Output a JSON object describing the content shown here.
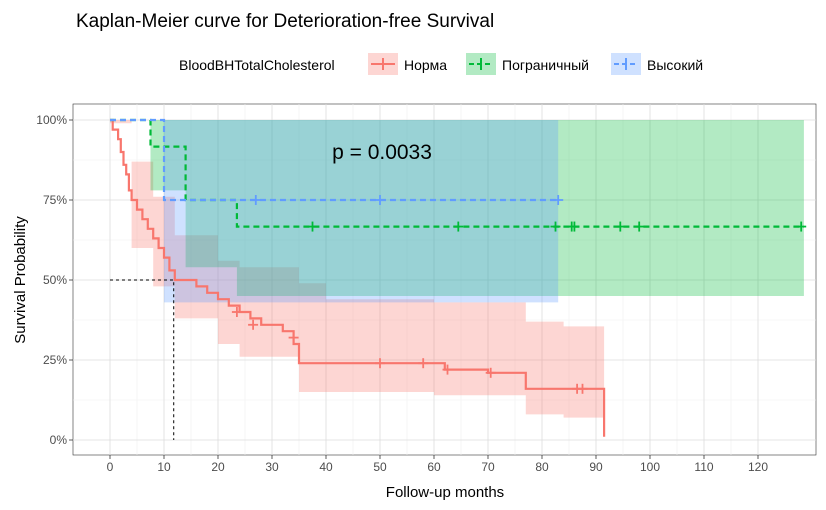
{
  "chart_data": {
    "type": "line",
    "subtype": "kaplan-meier",
    "title": "Kaplan-Meier curve for Deterioration-free Survival",
    "xlabel": "Follow-up months",
    "ylabel": "Survival Probability",
    "xlim": [
      -5,
      130
    ],
    "ylim": [
      0,
      1
    ],
    "x_ticks": [
      0,
      10,
      20,
      30,
      40,
      50,
      60,
      70,
      80,
      90,
      100,
      110,
      120
    ],
    "y_ticks": [
      {
        "value": 0,
        "label": "0%"
      },
      {
        "value": 0.25,
        "label": "25%"
      },
      {
        "value": 0.5,
        "label": "50%"
      },
      {
        "value": 0.75,
        "label": "75%"
      },
      {
        "value": 1,
        "label": "100%"
      }
    ],
    "grid": true,
    "legend": {
      "title": "BloodBHTotalCholesterol",
      "position": "top"
    },
    "annotation": "p = 0.0033",
    "annotation_pos": {
      "x": 50,
      "y": 0.9
    },
    "median_line": {
      "x": 11.8,
      "y": 0.5
    },
    "series": [
      {
        "name": "Норма",
        "color": "#F8766D",
        "fill": "#F8766D",
        "line_style": "solid",
        "steps": [
          [
            0,
            1.0
          ],
          [
            0.5,
            0.97
          ],
          [
            1.5,
            0.94
          ],
          [
            2,
            0.9
          ],
          [
            2.5,
            0.86
          ],
          [
            3,
            0.83
          ],
          [
            3.5,
            0.78
          ],
          [
            4,
            0.75
          ],
          [
            5,
            0.72
          ],
          [
            6,
            0.69
          ],
          [
            7,
            0.66
          ],
          [
            8,
            0.63
          ],
          [
            9,
            0.6
          ],
          [
            10,
            0.57
          ],
          [
            11,
            0.53
          ],
          [
            12,
            0.5
          ],
          [
            14,
            0.5
          ],
          [
            16,
            0.48
          ],
          [
            18,
            0.46
          ],
          [
            20,
            0.44
          ],
          [
            22,
            0.42
          ],
          [
            24,
            0.4
          ],
          [
            26,
            0.38
          ],
          [
            28,
            0.36
          ],
          [
            32,
            0.34
          ],
          [
            34,
            0.3
          ],
          [
            35,
            0.24
          ],
          [
            62,
            0.22
          ],
          [
            70,
            0.21
          ],
          [
            77,
            0.16
          ],
          [
            91,
            0.16
          ],
          [
            91.5,
            0.01
          ]
        ],
        "end_x": 91.5,
        "ci_upper": [
          [
            0,
            1.0
          ],
          [
            4,
            0.87
          ],
          [
            8,
            0.76
          ],
          [
            12,
            0.64
          ],
          [
            20,
            0.56
          ],
          [
            24,
            0.54
          ],
          [
            35,
            0.49
          ],
          [
            40,
            0.44
          ],
          [
            60,
            0.43
          ],
          [
            77,
            0.37
          ],
          [
            84,
            0.355
          ],
          [
            91.5,
            0.355
          ]
        ],
        "ci_lower": [
          [
            0,
            0.99
          ],
          [
            4,
            0.6
          ],
          [
            8,
            0.48
          ],
          [
            12,
            0.38
          ],
          [
            20,
            0.3
          ],
          [
            24,
            0.26
          ],
          [
            35,
            0.15
          ],
          [
            60,
            0.14
          ],
          [
            77,
            0.08
          ],
          [
            84,
            0.07
          ],
          [
            91.5,
            0.07
          ]
        ],
        "censor": [
          [
            23.5,
            0.4
          ],
          [
            26.5,
            0.36
          ],
          [
            34,
            0.32
          ],
          [
            50,
            0.24
          ],
          [
            58,
            0.24
          ],
          [
            62.5,
            0.22
          ],
          [
            70.5,
            0.21
          ],
          [
            86.5,
            0.16
          ],
          [
            87.5,
            0.16
          ]
        ]
      },
      {
        "name": "Пограничный",
        "color": "#00BA38",
        "fill": "#00BA38",
        "line_style": "dashed",
        "steps": [
          [
            0,
            1.0
          ],
          [
            7.5,
            0.917
          ],
          [
            14,
            0.75
          ],
          [
            23.5,
            0.667
          ],
          [
            128.5,
            0.667
          ]
        ],
        "end_x": 128.5,
        "ci_upper": [
          [
            0,
            1.0
          ],
          [
            128.5,
            1.0
          ]
        ],
        "ci_lower": [
          [
            0,
            1.0
          ],
          [
            7.5,
            0.78
          ],
          [
            14,
            0.54
          ],
          [
            23.5,
            0.45
          ],
          [
            128.5,
            0.45
          ]
        ],
        "censor": [
          [
            37.5,
            0.667
          ],
          [
            64.5,
            0.667
          ],
          [
            82.5,
            0.667
          ],
          [
            85.5,
            0.667
          ],
          [
            86,
            0.667
          ],
          [
            94.5,
            0.667
          ],
          [
            98,
            0.667
          ],
          [
            128,
            0.667
          ]
        ]
      },
      {
        "name": "Высокий",
        "color": "#619CFF",
        "fill": "#619CFF",
        "line_style": "dashed",
        "steps": [
          [
            0,
            1.0
          ],
          [
            10,
            0.75
          ],
          [
            83,
            0.75
          ]
        ],
        "end_x": 83,
        "ci_upper": [
          [
            0,
            1.0
          ],
          [
            83,
            1.0
          ]
        ],
        "ci_lower": [
          [
            0,
            1.0
          ],
          [
            10,
            0.43
          ],
          [
            83,
            0.43
          ]
        ],
        "censor": [
          [
            27,
            0.75
          ],
          [
            50,
            0.75
          ],
          [
            83,
            0.75
          ]
        ]
      }
    ]
  }
}
